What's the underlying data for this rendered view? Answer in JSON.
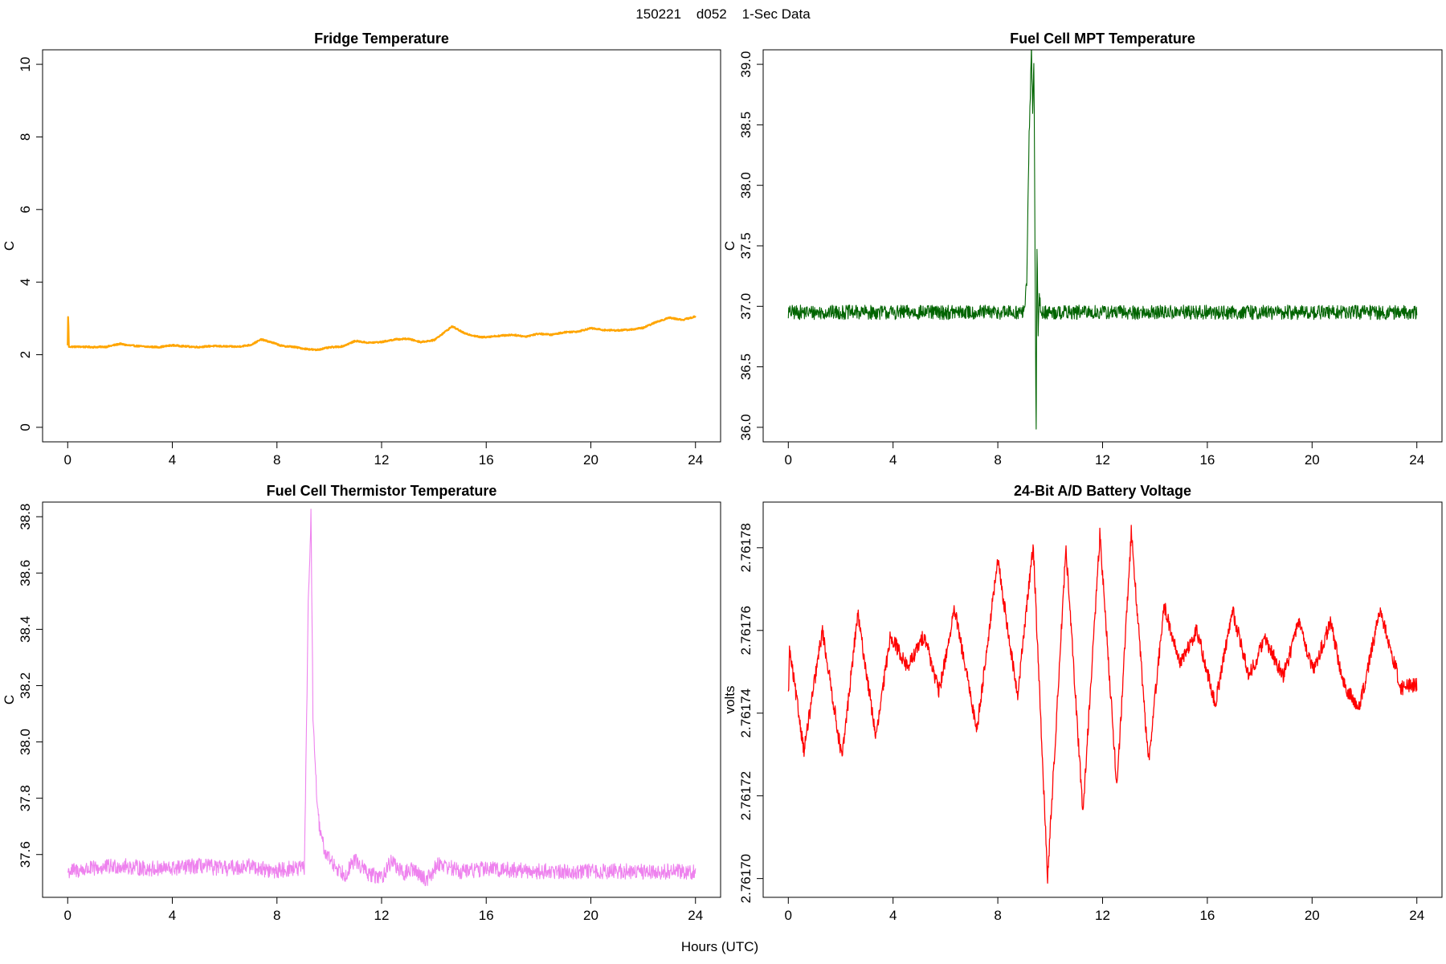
{
  "figure": {
    "suptitle": "150221    d052    1-Sec Data",
    "xlabel": "Hours (UTC)"
  },
  "chart_data": [
    {
      "type": "line",
      "title": "Fridge Temperature",
      "xlabel": "",
      "ylabel": "C",
      "xlim": [
        0,
        24
      ],
      "ylim": [
        0,
        10
      ],
      "xticks": [
        0,
        4,
        8,
        12,
        16,
        20,
        24
      ],
      "yticks": [
        0,
        2,
        4,
        6,
        8,
        10
      ],
      "ytick_labels": [
        "0",
        "2",
        "4",
        "6",
        "8",
        "10"
      ],
      "color": "#ffa500",
      "x": [
        0,
        0.02,
        0.05,
        0.5,
        1,
        1.5,
        2,
        2.3,
        3,
        3.5,
        4,
        4.5,
        5,
        5.5,
        6,
        6.5,
        7,
        7.4,
        7.8,
        8.2,
        8.6,
        9,
        9.5,
        10,
        10.5,
        11,
        11.5,
        12,
        12.5,
        13,
        13.5,
        14,
        14.7,
        15.2,
        15.8,
        16.5,
        17,
        17.5,
        18,
        18.5,
        19,
        19.5,
        20,
        20.5,
        21,
        21.5,
        22,
        22.5,
        23,
        23.5,
        24
      ],
      "y": [
        2.25,
        3.05,
        2.22,
        2.22,
        2.21,
        2.22,
        2.3,
        2.26,
        2.22,
        2.21,
        2.26,
        2.23,
        2.21,
        2.24,
        2.23,
        2.22,
        2.27,
        2.42,
        2.34,
        2.24,
        2.22,
        2.17,
        2.13,
        2.2,
        2.23,
        2.38,
        2.33,
        2.35,
        2.42,
        2.44,
        2.35,
        2.4,
        2.78,
        2.58,
        2.48,
        2.52,
        2.55,
        2.5,
        2.58,
        2.55,
        2.62,
        2.64,
        2.73,
        2.68,
        2.67,
        2.69,
        2.74,
        2.9,
        3.02,
        2.96,
        3.05
      ],
      "noise": 0.02,
      "lw": 2.2
    },
    {
      "type": "line",
      "title": "Fuel Cell MPT Temperature",
      "xlabel": "",
      "ylabel": "C",
      "xlim": [
        0,
        24
      ],
      "ylim": [
        36,
        39
      ],
      "xticks": [
        0,
        4,
        8,
        12,
        16,
        20,
        24
      ],
      "yticks": [
        36,
        36.5,
        37,
        37.5,
        38,
        38.5,
        39
      ],
      "ytick_labels": [
        "36.0",
        "36.5",
        "37.0",
        "37.5",
        "38.0",
        "38.5",
        "39.0"
      ],
      "color": "#006400",
      "x": [
        0,
        9.0,
        9.1,
        9.2,
        9.28,
        9.33,
        9.38,
        9.42,
        9.46,
        9.5,
        9.54,
        9.58,
        9.65,
        9.75,
        9.9,
        24
      ],
      "y": [
        36.95,
        36.95,
        37.2,
        38.4,
        39.13,
        38.6,
        39.05,
        37.5,
        36.02,
        37.45,
        36.7,
        37.1,
        36.95,
        36.95,
        36.95,
        36.95
      ],
      "noise": 0.06,
      "lw": 1.1
    },
    {
      "type": "line",
      "title": "Fuel Cell Thermistor Temperature",
      "xlabel": "",
      "ylabel": "C",
      "xlim": [
        0,
        24
      ],
      "ylim": [
        37.5,
        38.8
      ],
      "xticks": [
        0,
        4,
        8,
        12,
        16,
        20,
        24
      ],
      "yticks": [
        37.6,
        37.8,
        38.0,
        38.2,
        38.4,
        38.6,
        38.8
      ],
      "ytick_labels": [
        "37.6",
        "37.8",
        "38.0",
        "38.2",
        "38.4",
        "38.6",
        "38.8"
      ],
      "color": "#ee82ee",
      "x": [
        0,
        1,
        2,
        3,
        4,
        5,
        6,
        7,
        7.8,
        8.5,
        9.05,
        9.12,
        9.2,
        9.3,
        9.38,
        9.45,
        9.55,
        9.7,
        9.9,
        10.2,
        10.6,
        11.0,
        11.5,
        12.0,
        12.4,
        12.8,
        13.2,
        13.7,
        14.2,
        15,
        16,
        18,
        20,
        22,
        24
      ],
      "y": [
        37.54,
        37.55,
        37.56,
        37.55,
        37.55,
        37.56,
        37.55,
        37.56,
        37.54,
        37.55,
        37.55,
        38.0,
        38.5,
        38.8,
        38.1,
        37.95,
        37.75,
        37.65,
        37.6,
        37.56,
        37.53,
        37.58,
        37.53,
        37.52,
        37.58,
        37.53,
        37.55,
        37.51,
        37.57,
        37.54,
        37.55,
        37.54,
        37.54,
        37.54,
        37.54
      ],
      "noise": 0.028,
      "lw": 1.1
    },
    {
      "type": "line",
      "title": "24-Bit A/D Battery Voltage",
      "xlabel": "",
      "ylabel": "volts",
      "xlim": [
        0,
        24
      ],
      "ylim": [
        2.761699,
        2.7617875
      ],
      "xticks": [
        0,
        4,
        8,
        12,
        16,
        20,
        24
      ],
      "yticks": [
        2.7617,
        2.76172,
        2.76174,
        2.76176,
        2.76178
      ],
      "ytick_labels": [
        "2.76170",
        "2.76172",
        "2.76174",
        "2.76176",
        "2.76178"
      ],
      "color": "#ff0000",
      "x": [
        0,
        0.05,
        0.6,
        1.3,
        2.05,
        2.65,
        3.35,
        3.9,
        4.55,
        5.2,
        5.75,
        6.35,
        7.2,
        8.0,
        8.75,
        9.35,
        9.9,
        10.6,
        11.25,
        11.9,
        12.55,
        13.1,
        13.75,
        14.35,
        14.95,
        15.6,
        16.3,
        16.95,
        17.6,
        18.2,
        18.9,
        19.5,
        20.05,
        20.7,
        21.2,
        21.8,
        22.6,
        23.4,
        24
      ],
      "y": [
        2.761744,
        2.761755,
        2.761731,
        2.76176,
        2.761729,
        2.761764,
        2.761734,
        2.761759,
        2.761751,
        2.761759,
        2.761745,
        2.761765,
        2.761736,
        2.761777,
        2.761744,
        2.761781,
        2.7617,
        2.76178,
        2.761716,
        2.761783,
        2.761722,
        2.761784,
        2.761728,
        2.761766,
        2.761752,
        2.76176,
        2.761742,
        2.761765,
        2.761749,
        2.761758,
        2.761749,
        2.761762,
        2.76175,
        2.761762,
        2.761747,
        2.761741,
        2.761765,
        2.761746,
        2.761747
      ],
      "noise": 1.8e-06,
      "lw": 1.3
    }
  ]
}
